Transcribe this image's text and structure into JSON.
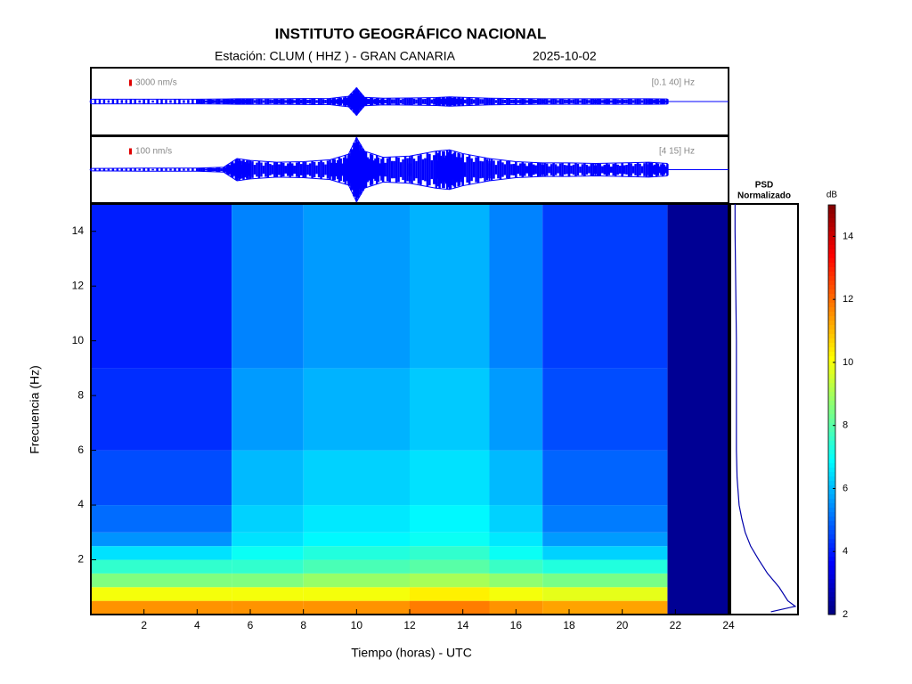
{
  "title": "INSTITUTO GEOGRÁFICO NACIONAL",
  "subtitle": "Estación:  CLUM ( HHZ ) - GRAN CANARIA",
  "date": "2025-10-02",
  "chart_data": [
    {
      "type": "trace",
      "scale_label": "3000 nm/s",
      "scale_value": 3000,
      "band_label": "[0.1 40] Hz",
      "color": "#0000ff",
      "xlim": [
        0,
        24
      ],
      "ylim": [
        -16000,
        16000
      ],
      "x": [
        0,
        2,
        4,
        5,
        5.5,
        6,
        7,
        8,
        9,
        9.7,
        10,
        10.3,
        11,
        12,
        13,
        13.5,
        14,
        15,
        16,
        17,
        18,
        19,
        20,
        21,
        21.7
      ],
      "values": [
        1100,
        1100,
        1100,
        1200,
        1300,
        1300,
        1300,
        1400,
        1500,
        2500,
        6500,
        2000,
        1600,
        1700,
        1900,
        2200,
        2000,
        1600,
        1400,
        1300,
        1300,
        1300,
        1300,
        1300,
        1200
      ]
    },
    {
      "type": "trace",
      "scale_label": "100 nm/s",
      "scale_value": 100,
      "band_label": "[4 15] Hz",
      "color": "#0000ff",
      "xlim": [
        0,
        24
      ],
      "ylim": [
        -540,
        540
      ],
      "x": [
        0,
        2,
        4,
        5,
        5.5,
        6,
        7,
        8,
        9,
        9.7,
        10,
        10.3,
        11,
        12,
        13,
        13.5,
        14,
        15,
        16,
        17,
        18,
        19,
        20,
        21,
        21.7
      ],
      "values": [
        20,
        25,
        25,
        40,
        180,
        150,
        120,
        130,
        160,
        250,
        520,
        300,
        200,
        220,
        300,
        320,
        260,
        180,
        130,
        110,
        110,
        100,
        110,
        120,
        100
      ]
    },
    {
      "type": "spectrogram",
      "xlabel": "Tiempo (horas) - UTC",
      "ylabel": "Frecuencia  (Hz)",
      "xlim": [
        0,
        24
      ],
      "ylim": [
        0,
        15
      ],
      "xticks": [
        2,
        4,
        6,
        8,
        10,
        12,
        14,
        16,
        18,
        20,
        22,
        24
      ],
      "yticks": [
        2,
        4,
        6,
        8,
        10,
        12,
        14
      ],
      "time_edges": [
        0,
        5.3,
        8,
        12,
        15,
        17,
        21.7
      ],
      "freq_edges": [
        0,
        0.5,
        1,
        1.5,
        2,
        2.5,
        3,
        4,
        6,
        9,
        15
      ],
      "values": [
        [
          11.5,
          10,
          8.5,
          7.5,
          6.5,
          5.5,
          5,
          4.6,
          4.2,
          4.0
        ],
        [
          11.5,
          10,
          8.5,
          7.5,
          7,
          6.5,
          6.3,
          6,
          5.6,
          5.3
        ],
        [
          11.5,
          10,
          8.8,
          7.8,
          7.3,
          6.8,
          6.6,
          6.3,
          5.9,
          5.6
        ],
        [
          11.8,
          10.3,
          9,
          8,
          7.5,
          7,
          6.8,
          6.5,
          6.2,
          5.9
        ],
        [
          11.5,
          10,
          8.7,
          7.6,
          7,
          6.6,
          6.3,
          6,
          5.6,
          5.3
        ],
        [
          11.3,
          9.8,
          8.4,
          7.3,
          6.3,
          5.6,
          5.2,
          4.9,
          4.6,
          4.4
        ]
      ],
      "clim": [
        2,
        15
      ],
      "cticks": [
        2,
        4,
        6,
        8,
        10,
        12,
        14
      ],
      "clabel": "dB"
    },
    {
      "type": "psd",
      "title": [
        "PSD",
        "Normalizado"
      ],
      "color": "#0000aa",
      "xlim": [
        0,
        1
      ],
      "ylim": [
        0,
        15
      ],
      "freqs": [
        0.1,
        0.3,
        0.5,
        1,
        1.5,
        2,
        2.5,
        3,
        3.5,
        4,
        5,
        6,
        8,
        10,
        12,
        14,
        15
      ],
      "values": [
        0.6,
        0.96,
        0.85,
        0.72,
        0.55,
        0.42,
        0.3,
        0.22,
        0.17,
        0.13,
        0.1,
        0.09,
        0.09,
        0.09,
        0.08,
        0.07,
        0.07
      ]
    }
  ]
}
